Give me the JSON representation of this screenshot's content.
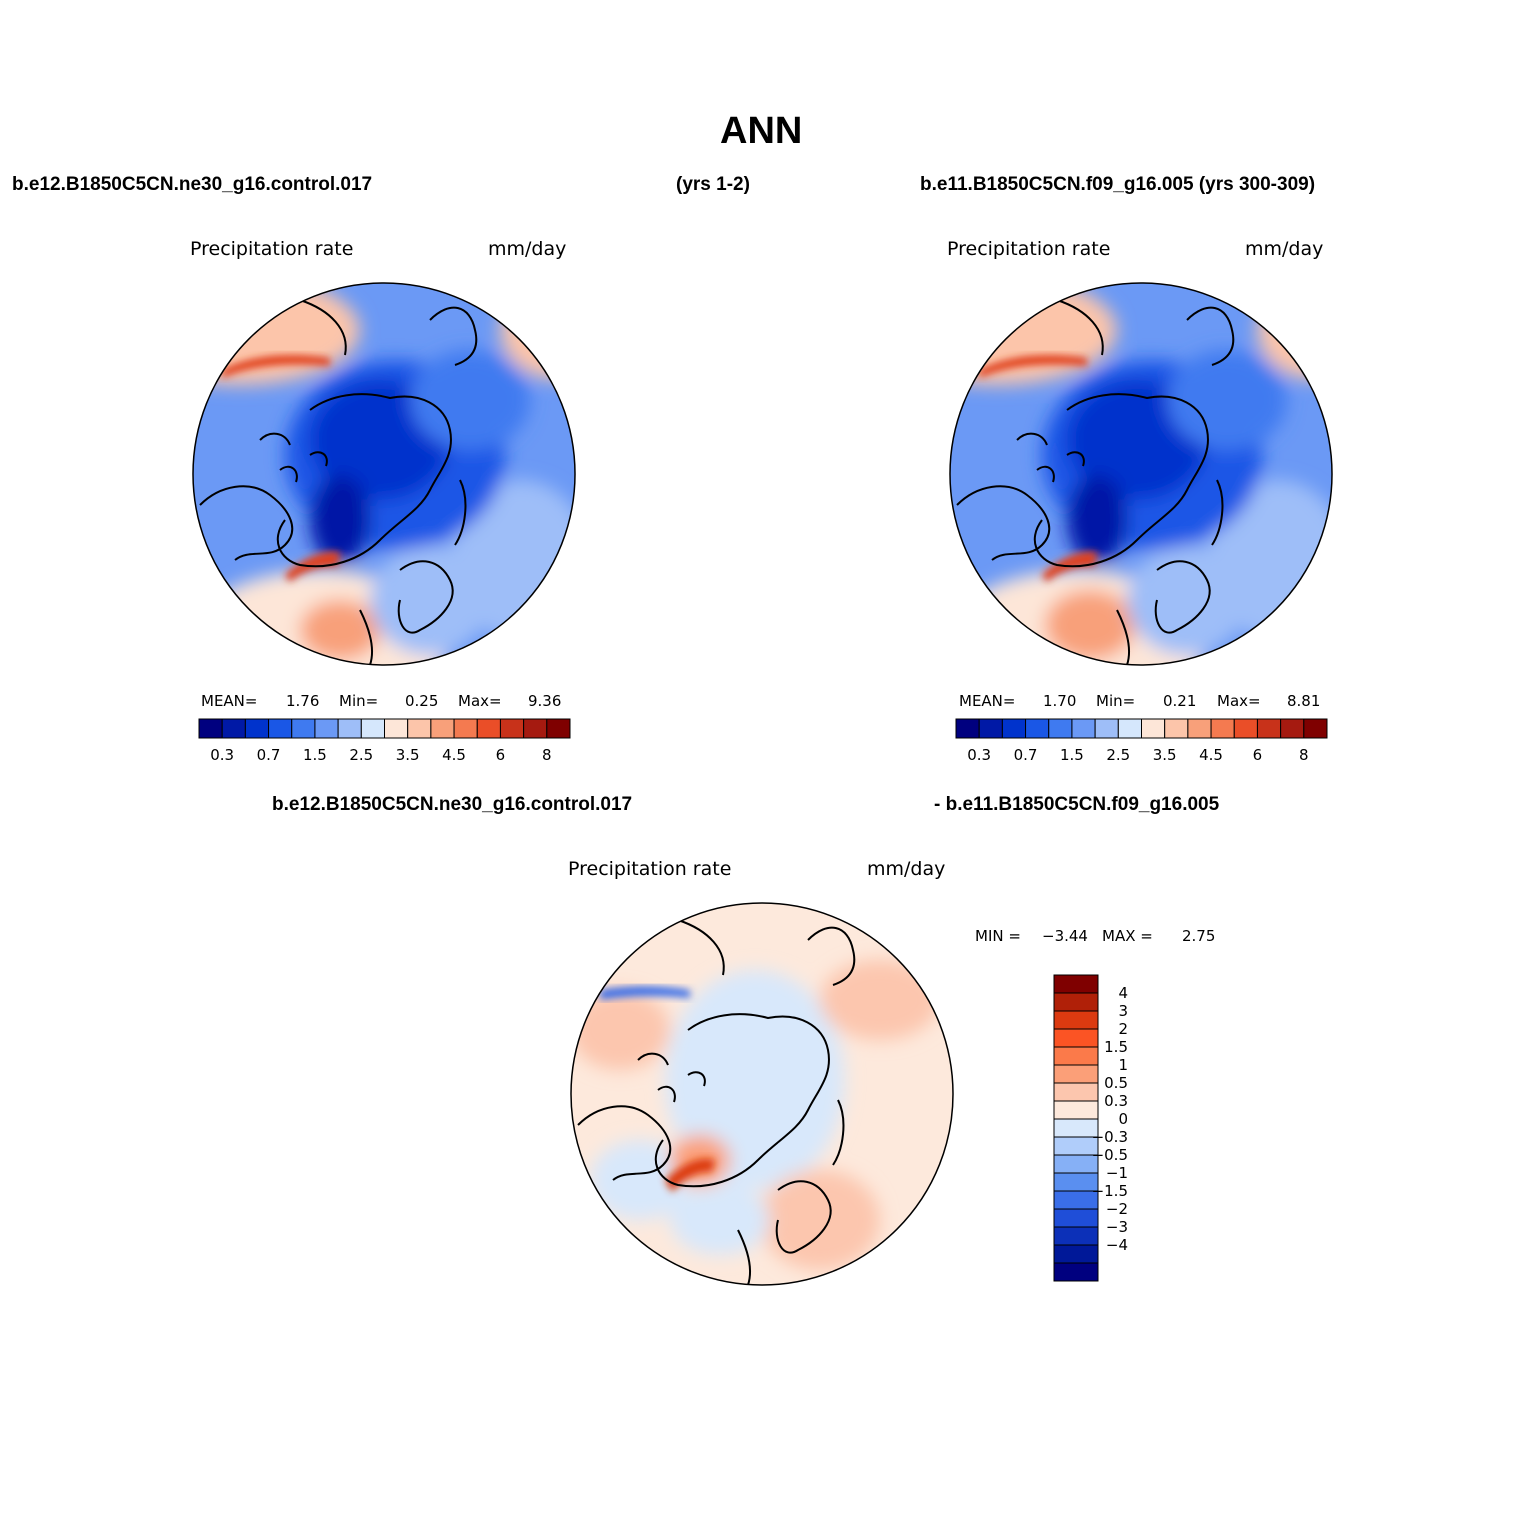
{
  "title": "ANN",
  "header": {
    "case1": "b.e12.B1850C5CN.ne30_g16.control.017",
    "case1_years": "(yrs 1-2)",
    "case2": "b.e11.B1850C5CN.f09_g16.005 (yrs 300-309)",
    "diff_case1": "b.e12.B1850C5CN.ne30_g16.control.017",
    "diff_case2": "- b.e11.B1850C5CN.f09_g16.005"
  },
  "panels": [
    {
      "variable": "Precipitation rate",
      "units": "mm/day",
      "stats": {
        "mean_label": "MEAN=",
        "mean": "1.76",
        "min_label": "Min=",
        "min": "0.25",
        "max_label": "Max=",
        "max": "9.36"
      }
    },
    {
      "variable": "Precipitation rate",
      "units": "mm/day",
      "stats": {
        "mean_label": "MEAN=",
        "mean": "1.70",
        "min_label": "Min=",
        "min": "0.21",
        "max_label": "Max=",
        "max": "8.81"
      }
    },
    {
      "variable": "Precipitation rate",
      "units": "mm/day",
      "stats": {
        "min_label": "MIN =",
        "min": "−3.44",
        "max_label": "MAX =",
        "max": "2.75"
      }
    }
  ],
  "colorbar_main": {
    "colors": [
      "#00007f",
      "#0019a6",
      "#0033cc",
      "#1a57e6",
      "#3f7af0",
      "#6b99f5",
      "#9ebef8",
      "#d5e7fc",
      "#fde6d8",
      "#fcc5aa",
      "#f8a07a",
      "#f47a50",
      "#ea4e28",
      "#c8321a",
      "#a51a10",
      "#7f0000"
    ],
    "tick_labels": [
      "0.3",
      "0.7",
      "1.5",
      "2.5",
      "3.5",
      "4.5",
      "6",
      "8"
    ]
  },
  "colorbar_diff": {
    "colors": [
      "#7f0000",
      "#b02008",
      "#dc3a10",
      "#fb5424",
      "#fb7a4a",
      "#fb9f78",
      "#fcc6ae",
      "#fde9dc",
      "#d8e8fb",
      "#b0cdfa",
      "#86b0f6",
      "#5a8ff0",
      "#3a6ee8",
      "#1f4ed8",
      "#0c30b8",
      "#001898",
      "#00007f"
    ],
    "tick_labels": [
      "4",
      "3",
      "2",
      "1.5",
      "1",
      "0.5",
      "0.3",
      "0",
      "−0.3",
      "−0.5",
      "−1",
      "−1.5",
      "−2",
      "−3",
      "−4"
    ]
  },
  "colors": {
    "background": "#ffffff",
    "text": "#000000",
    "dry": "#0a1fa8",
    "wet": "#e0401c"
  }
}
